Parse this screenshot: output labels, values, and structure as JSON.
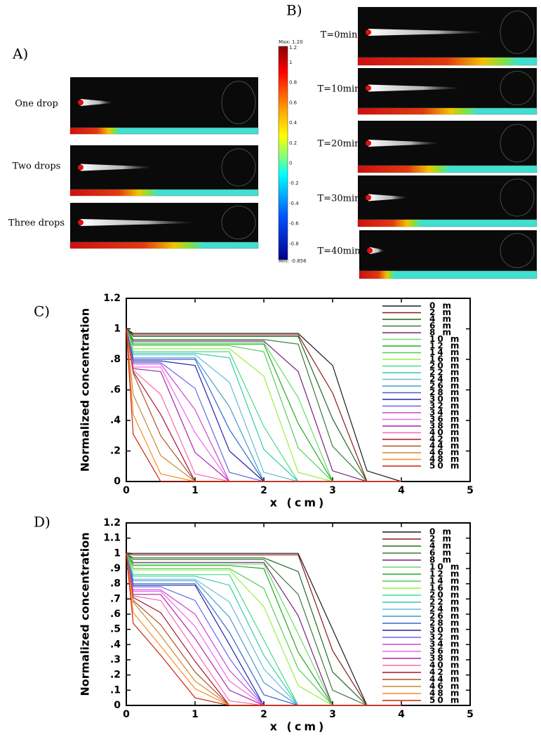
{
  "panels": {
    "a": {
      "label": "A)",
      "images": [
        "One drop",
        "Two drops",
        "Three drops"
      ],
      "colorbar_labels": [
        "Max: 1.20",
        "1.2",
        "1",
        "0.8",
        "0.6",
        "0.4",
        "0.2",
        "0",
        "-0.2",
        "-0.4",
        "-0.6",
        "-0.8",
        "Min: -0.856"
      ]
    },
    "b": {
      "label": "B)",
      "images": [
        "T=0min",
        "T=10min",
        "T=20min",
        "T=30min",
        "T=40min"
      ]
    }
  },
  "chart_data": [
    {
      "type": "line",
      "panel_label": "C)",
      "xlabel": "x (cm)",
      "ylabel": "Normalized concentration",
      "xlim": [
        0,
        5
      ],
      "ylim": [
        0,
        1.2
      ],
      "xticks": [
        0,
        1,
        2,
        3,
        4,
        5
      ],
      "yticks": [
        0,
        {
          "value": 0.2,
          "label": ".2"
        },
        {
          "value": 0.4,
          "label": ".4"
        },
        {
          "value": 0.6,
          "label": ".6"
        },
        {
          "value": 0.8,
          "label": ".8"
        },
        1,
        1.2
      ],
      "x": [
        0,
        0.1,
        0.5,
        1,
        1.5,
        2,
        2.5,
        3,
        3.5,
        4
      ],
      "series": [
        {
          "name": "0 m",
          "color": "#1a1a1a",
          "values": [
            1,
            0.97,
            0.97,
            0.97,
            0.97,
            0.97,
            0.97,
            0.76,
            0.07,
            0
          ]
        },
        {
          "name": "2 m",
          "color": "#8b1a1a",
          "values": [
            1,
            0.96,
            0.96,
            0.96,
            0.96,
            0.96,
            0.96,
            0.58,
            0,
            0
          ]
        },
        {
          "name": "4 m",
          "color": "#1f6b1f",
          "values": [
            1,
            0.95,
            0.95,
            0.95,
            0.95,
            0.95,
            0.95,
            0.41,
            0,
            0
          ]
        },
        {
          "name": "6 m",
          "color": "#3c7a3c",
          "values": [
            1,
            0.93,
            0.93,
            0.93,
            0.93,
            0.93,
            0.9,
            0.23,
            0,
            0
          ]
        },
        {
          "name": "8 m",
          "color": "#7a1f7a",
          "values": [
            1,
            0.92,
            0.92,
            0.92,
            0.92,
            0.92,
            0.72,
            0.07,
            0,
            0
          ]
        },
        {
          "name": "10 m",
          "color": "#66dd66",
          "values": [
            1,
            0.91,
            0.91,
            0.91,
            0.91,
            0.91,
            0.55,
            0,
            0,
            0
          ]
        },
        {
          "name": "12 m",
          "color": "#22aa22",
          "values": [
            1,
            0.9,
            0.9,
            0.9,
            0.9,
            0.9,
            0.38,
            0,
            0,
            0
          ]
        },
        {
          "name": "14 m",
          "color": "#55cc55",
          "values": [
            1,
            0.89,
            0.89,
            0.89,
            0.89,
            0.85,
            0.22,
            0,
            0,
            0
          ]
        },
        {
          "name": "16 m",
          "color": "#99ee44",
          "values": [
            1,
            0.87,
            0.87,
            0.87,
            0.87,
            0.69,
            0.06,
            0,
            0,
            0
          ]
        },
        {
          "name": "20 m",
          "color": "#44dd88",
          "values": [
            1,
            0.85,
            0.85,
            0.85,
            0.85,
            0.36,
            0,
            0,
            0,
            0
          ]
        },
        {
          "name": "22 m",
          "color": "#33ccaa",
          "values": [
            1,
            0.84,
            0.84,
            0.84,
            0.81,
            0.21,
            0,
            0,
            0,
            0
          ]
        },
        {
          "name": "24 m",
          "color": "#66bbdd",
          "values": [
            1,
            0.83,
            0.83,
            0.83,
            0.65,
            0.06,
            0,
            0,
            0,
            0
          ]
        },
        {
          "name": "26 m",
          "color": "#4499cc",
          "values": [
            1,
            0.81,
            0.81,
            0.81,
            0.49,
            0,
            0,
            0,
            0,
            0
          ]
        },
        {
          "name": "28 m",
          "color": "#3366cc",
          "values": [
            1,
            0.8,
            0.8,
            0.8,
            0.34,
            0,
            0,
            0,
            0,
            0
          ]
        },
        {
          "name": "30 m",
          "color": "#2222aa",
          "values": [
            1,
            0.79,
            0.79,
            0.76,
            0.2,
            0,
            0,
            0,
            0,
            0
          ]
        },
        {
          "name": "32 m",
          "color": "#6666ee",
          "values": [
            1,
            0.78,
            0.78,
            0.61,
            0.06,
            0,
            0,
            0,
            0,
            0
          ]
        },
        {
          "name": "34 m",
          "color": "#cc44cc",
          "values": [
            1,
            0.77,
            0.77,
            0.47,
            0,
            0,
            0,
            0,
            0,
            0
          ]
        },
        {
          "name": "36 m",
          "color": "#ee66ee",
          "values": [
            1,
            0.75,
            0.75,
            0.32,
            0,
            0,
            0,
            0,
            0,
            0
          ]
        },
        {
          "name": "38 m",
          "color": "#aa22aa",
          "values": [
            1,
            0.74,
            0.72,
            0.19,
            0,
            0,
            0,
            0,
            0,
            0
          ]
        },
        {
          "name": "40 m",
          "color": "#ff66aa",
          "values": [
            1,
            0.73,
            0.57,
            0.05,
            0,
            0,
            0,
            0,
            0,
            0
          ]
        },
        {
          "name": "42 m",
          "color": "#aa1133",
          "values": [
            1,
            0.72,
            0.44,
            0,
            0,
            0,
            0,
            0,
            0,
            0
          ]
        },
        {
          "name": "44 m",
          "color": "#aa5522",
          "values": [
            1,
            0.71,
            0.3,
            0,
            0,
            0,
            0,
            0,
            0,
            0
          ]
        },
        {
          "name": "46 m",
          "color": "#cc8833",
          "values": [
            1,
            0.57,
            0.17,
            0,
            0,
            0,
            0,
            0,
            0,
            0
          ]
        },
        {
          "name": "48 m",
          "color": "#ff8822",
          "values": [
            1,
            0.44,
            0.05,
            0,
            0,
            0,
            0,
            0,
            0,
            0
          ]
        },
        {
          "name": "50 m",
          "color": "#cc2211",
          "values": [
            1,
            0.31,
            0,
            0,
            0,
            0,
            0,
            0,
            0,
            0
          ]
        }
      ]
    },
    {
      "type": "line",
      "panel_label": "D)",
      "xlabel": "x (cm)",
      "ylabel": "Normalized concentration",
      "xlim": [
        0,
        5
      ],
      "ylim": [
        0,
        1.2
      ],
      "xticks": [
        0,
        1,
        2,
        3,
        4,
        5
      ],
      "yticks": [
        0,
        {
          "value": 0.1,
          "label": ".1"
        },
        {
          "value": 0.2,
          "label": ".2"
        },
        {
          "value": 0.3,
          "label": ".3"
        },
        {
          "value": 0.4,
          "label": ".4"
        },
        {
          "value": 0.5,
          "label": ".5"
        },
        {
          "value": 0.6,
          "label": ".6"
        },
        {
          "value": 0.7,
          "label": ".7"
        },
        {
          "value": 0.8,
          "label": ".8"
        },
        {
          "value": 0.9,
          "label": ".9"
        },
        1,
        1.1,
        1.2
      ],
      "x": [
        0,
        0.1,
        0.5,
        1,
        1.5,
        2,
        2.5,
        3,
        3.5,
        4
      ],
      "series": [
        {
          "name": "0 m",
          "color": "#1a1a1a",
          "values": [
            1,
            1,
            1,
            1,
            1,
            1,
            1,
            0.5,
            0,
            0
          ]
        },
        {
          "name": "2 m",
          "color": "#8b1a1a",
          "values": [
            1,
            0.99,
            0.99,
            0.99,
            0.99,
            0.99,
            0.99,
            0.36,
            0,
            0
          ]
        },
        {
          "name": "4 m",
          "color": "#1f6b1f",
          "values": [
            1,
            0.97,
            0.97,
            0.97,
            0.97,
            0.97,
            0.88,
            0.22,
            0,
            0
          ]
        },
        {
          "name": "6 m",
          "color": "#3c7a3c",
          "values": [
            1,
            0.96,
            0.96,
            0.96,
            0.96,
            0.96,
            0.73,
            0.1,
            0,
            0
          ]
        },
        {
          "name": "8 m",
          "color": "#7a1f7a",
          "values": [
            1,
            0.94,
            0.94,
            0.94,
            0.94,
            0.94,
            0.59,
            0,
            0,
            0
          ]
        },
        {
          "name": "10 m",
          "color": "#66dd66",
          "values": [
            1,
            0.93,
            0.93,
            0.93,
            0.93,
            0.93,
            0.47,
            0,
            0,
            0
          ]
        },
        {
          "name": "12 m",
          "color": "#22aa22",
          "values": [
            1,
            0.92,
            0.92,
            0.92,
            0.92,
            0.9,
            0.35,
            0,
            0,
            0
          ]
        },
        {
          "name": "14 m",
          "color": "#55cc55",
          "values": [
            1,
            0.9,
            0.9,
            0.9,
            0.9,
            0.77,
            0.24,
            0,
            0,
            0
          ]
        },
        {
          "name": "16 m",
          "color": "#99ee44",
          "values": [
            1,
            0.89,
            0.89,
            0.89,
            0.89,
            0.65,
            0.13,
            0,
            0,
            0
          ]
        },
        {
          "name": "20 m",
          "color": "#44dd88",
          "values": [
            1,
            0.86,
            0.86,
            0.86,
            0.86,
            0.43,
            0,
            0,
            0,
            0
          ]
        },
        {
          "name": "22 m",
          "color": "#33ccaa",
          "values": [
            1,
            0.85,
            0.85,
            0.85,
            0.79,
            0.33,
            0,
            0,
            0,
            0
          ]
        },
        {
          "name": "24 m",
          "color": "#66bbdd",
          "values": [
            1,
            0.83,
            0.83,
            0.83,
            0.68,
            0.24,
            0,
            0,
            0,
            0
          ]
        },
        {
          "name": "26 m",
          "color": "#4499cc",
          "values": [
            1,
            0.82,
            0.82,
            0.82,
            0.58,
            0.15,
            0,
            0,
            0,
            0
          ]
        },
        {
          "name": "28 m",
          "color": "#3366cc",
          "values": [
            1,
            0.8,
            0.8,
            0.8,
            0.48,
            0.07,
            0,
            0,
            0,
            0
          ]
        },
        {
          "name": "30 m",
          "color": "#2222aa",
          "values": [
            1,
            0.79,
            0.79,
            0.79,
            0.4,
            0,
            0,
            0,
            0,
            0
          ]
        },
        {
          "name": "32 m",
          "color": "#6666ee",
          "values": [
            1,
            0.78,
            0.78,
            0.69,
            0.31,
            0,
            0,
            0,
            0,
            0
          ]
        },
        {
          "name": "34 m",
          "color": "#cc44cc",
          "values": [
            1,
            0.76,
            0.76,
            0.6,
            0.23,
            0,
            0,
            0,
            0,
            0
          ]
        },
        {
          "name": "36 m",
          "color": "#ee66ee",
          "values": [
            1,
            0.75,
            0.75,
            0.52,
            0.16,
            0,
            0,
            0,
            0,
            0
          ]
        },
        {
          "name": "38 m",
          "color": "#aa22aa",
          "values": [
            1,
            0.73,
            0.73,
            0.44,
            0.1,
            0,
            0,
            0,
            0,
            0
          ]
        },
        {
          "name": "40 m",
          "color": "#ff66aa",
          "values": [
            1,
            0.72,
            0.69,
            0.36,
            0.03,
            0,
            0,
            0,
            0,
            0
          ]
        },
        {
          "name": "42 m",
          "color": "#aa1133",
          "values": [
            1,
            0.71,
            0.61,
            0.29,
            0,
            0,
            0,
            0,
            0,
            0
          ]
        },
        {
          "name": "44 m",
          "color": "#aa5522",
          "values": [
            1,
            0.69,
            0.53,
            0.22,
            0,
            0,
            0,
            0,
            0,
            0
          ]
        },
        {
          "name": "46 m",
          "color": "#cc8833",
          "values": [
            1,
            0.68,
            0.46,
            0.16,
            0,
            0,
            0,
            0,
            0,
            0
          ]
        },
        {
          "name": "48 m",
          "color": "#ff8822",
          "values": [
            1,
            0.61,
            0.39,
            0.11,
            0,
            0,
            0,
            0,
            0,
            0
          ]
        },
        {
          "name": "50 m",
          "color": "#cc2211",
          "values": [
            1,
            0.54,
            0.33,
            0.05,
            0,
            0,
            0,
            0,
            0,
            0
          ]
        }
      ]
    }
  ]
}
